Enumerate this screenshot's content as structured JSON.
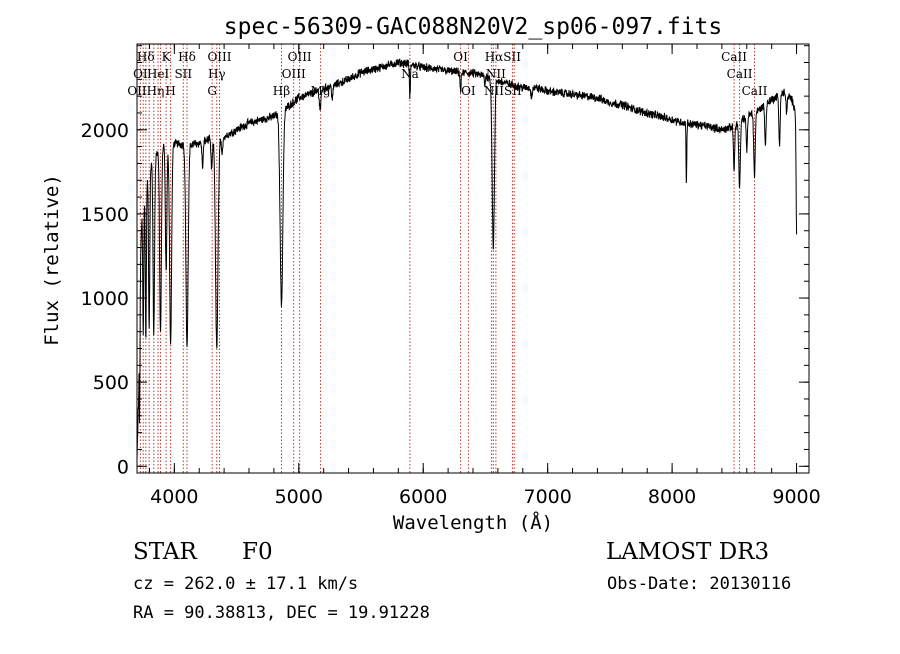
{
  "chart_data": {
    "type": "line",
    "title": "spec-56309-GAC088N20V2_sp06-097.fits",
    "xlabel": "Wavelength (Å)",
    "ylabel": "Flux (relative)",
    "xlim": [
      3700,
      9100
    ],
    "ylim": [
      -40,
      2510
    ],
    "x_ticks": [
      4000,
      5000,
      6000,
      7000,
      8000,
      9000
    ],
    "x_tick_labels": [
      "4000",
      "5000",
      "6000",
      "7000",
      "8000",
      "9000"
    ],
    "y_ticks": [
      0,
      500,
      1000,
      1500,
      2000
    ],
    "y_tick_labels": [
      "0",
      "500",
      "1000",
      "1500",
      "2000"
    ],
    "x_minor_step": 200,
    "y_minor_step": 100,
    "continuum": [
      [
        3700,
        600
      ],
      [
        3740,
        1500
      ],
      [
        3800,
        1780
      ],
      [
        3850,
        1850
      ],
      [
        3900,
        1900
      ],
      [
        4000,
        1920
      ],
      [
        4100,
        1910
      ],
      [
        4200,
        1920
      ],
      [
        4300,
        1950
      ],
      [
        4400,
        1960
      ],
      [
        4500,
        2000
      ],
      [
        4600,
        2040
      ],
      [
        4700,
        2060
      ],
      [
        4800,
        2080
      ],
      [
        4900,
        2130
      ],
      [
        5000,
        2190
      ],
      [
        5100,
        2215
      ],
      [
        5200,
        2245
      ],
      [
        5300,
        2270
      ],
      [
        5400,
        2300
      ],
      [
        5500,
        2340
      ],
      [
        5600,
        2360
      ],
      [
        5700,
        2380
      ],
      [
        5800,
        2400
      ],
      [
        5900,
        2390
      ],
      [
        6000,
        2370
      ],
      [
        6100,
        2360
      ],
      [
        6200,
        2350
      ],
      [
        6300,
        2340
      ],
      [
        6400,
        2335
      ],
      [
        6500,
        2320
      ],
      [
        6600,
        2290
      ],
      [
        6700,
        2270
      ],
      [
        6800,
        2250
      ],
      [
        6900,
        2250
      ],
      [
        7000,
        2230
      ],
      [
        7100,
        2220
      ],
      [
        7200,
        2210
      ],
      [
        7300,
        2200
      ],
      [
        7400,
        2190
      ],
      [
        7500,
        2160
      ],
      [
        7600,
        2150
      ],
      [
        7700,
        2120
      ],
      [
        7800,
        2100
      ],
      [
        7900,
        2080
      ],
      [
        8000,
        2060
      ],
      [
        8100,
        2040
      ],
      [
        8200,
        2030
      ],
      [
        8300,
        2020
      ],
      [
        8400,
        2000
      ],
      [
        8500,
        2020
      ],
      [
        8600,
        2080
      ],
      [
        8700,
        2120
      ],
      [
        8800,
        2180
      ],
      [
        8900,
        2220
      ],
      [
        8960,
        2180
      ],
      [
        9000,
        2100
      ]
    ],
    "absorption": [
      {
        "center": 3720,
        "depth": 800,
        "width": 4
      },
      {
        "center": 3750,
        "depth": 750,
        "width": 4
      },
      {
        "center": 3771,
        "depth": 900,
        "width": 4
      },
      {
        "center": 3798,
        "depth": 950,
        "width": 5
      },
      {
        "center": 3835,
        "depth": 1050,
        "width": 6
      },
      {
        "center": 3889,
        "depth": 1100,
        "width": 7
      },
      {
        "center": 3934,
        "depth": 750,
        "width": 6
      },
      {
        "center": 3970,
        "depth": 1200,
        "width": 8
      },
      {
        "center": 4102,
        "depth": 1200,
        "width": 9
      },
      {
        "center": 4227,
        "depth": 150,
        "width": 5
      },
      {
        "center": 4300,
        "depth": 180,
        "width": 6
      },
      {
        "center": 4341,
        "depth": 1250,
        "width": 10
      },
      {
        "center": 4383,
        "depth": 120,
        "width": 5
      },
      {
        "center": 4861,
        "depth": 1150,
        "width": 11
      },
      {
        "center": 5172,
        "depth": 120,
        "width": 6
      },
      {
        "center": 5270,
        "depth": 80,
        "width": 5
      },
      {
        "center": 5893,
        "depth": 200,
        "width": 4
      },
      {
        "center": 6300,
        "depth": 120,
        "width": 4
      },
      {
        "center": 6495,
        "depth": 60,
        "width": 4
      },
      {
        "center": 6563,
        "depth": 1000,
        "width": 9
      },
      {
        "center": 6870,
        "depth": 50,
        "width": 6
      },
      {
        "center": 8115,
        "depth": 350,
        "width": 3
      },
      {
        "center": 8498,
        "depth": 250,
        "width": 5
      },
      {
        "center": 8542,
        "depth": 400,
        "width": 6
      },
      {
        "center": 8600,
        "depth": 200,
        "width": 5
      },
      {
        "center": 8662,
        "depth": 380,
        "width": 6
      },
      {
        "center": 8750,
        "depth": 250,
        "width": 5
      },
      {
        "center": 8863,
        "depth": 300,
        "width": 5
      },
      {
        "center": 8920,
        "depth": 100,
        "width": 5
      },
      {
        "center": 9000,
        "depth": 700,
        "width": 4
      }
    ],
    "line_markers": [
      3727,
      3750,
      3771,
      3798,
      3835,
      3869,
      3889,
      3934,
      3970,
      4072,
      4102,
      4304,
      4341,
      4363,
      4861,
      4959,
      5007,
      5175,
      5893,
      6300,
      6363,
      6548,
      6563,
      6584,
      6717,
      6731,
      8498,
      8542,
      8662
    ],
    "line_labels": [
      {
        "text": "Hδ",
        "x": 3770,
        "row": 0
      },
      {
        "text": "K",
        "x": 3934,
        "row": 0
      },
      {
        "text": "Hδ",
        "x": 4102,
        "row": 0
      },
      {
        "text": "OIII",
        "x": 4363,
        "row": 0
      },
      {
        "text": "OIII",
        "x": 5007,
        "row": 0
      },
      {
        "text": "OI",
        "x": 6300,
        "row": 0
      },
      {
        "text": "HαSII",
        "x": 6640,
        "row": 0
      },
      {
        "text": "CaII",
        "x": 8498,
        "row": 0
      },
      {
        "text": "OI",
        "x": 3727,
        "row": 1
      },
      {
        "text": "HeI",
        "x": 3870,
        "row": 1
      },
      {
        "text": "SII",
        "x": 4072,
        "row": 1
      },
      {
        "text": "Hγ",
        "x": 4341,
        "row": 1
      },
      {
        "text": "OIII",
        "x": 4959,
        "row": 1
      },
      {
        "text": "Na",
        "x": 5893,
        "row": 1
      },
      {
        "text": "NII",
        "x": 6584,
        "row": 1
      },
      {
        "text": "CaII",
        "x": 8542,
        "row": 1
      },
      {
        "text": "OIIHη",
        "x": 3771,
        "row": 2
      },
      {
        "text": "H",
        "x": 3970,
        "row": 2
      },
      {
        "text": "G",
        "x": 4304,
        "row": 2
      },
      {
        "text": "Hβ",
        "x": 4861,
        "row": 2
      },
      {
        "text": "Mg",
        "x": 5175,
        "row": 2
      },
      {
        "text": "OI",
        "x": 6363,
        "row": 2
      },
      {
        "text": "NIISII",
        "x": 6640,
        "row": 2
      },
      {
        "text": "CaII",
        "x": 8662,
        "row": 2
      }
    ]
  },
  "info": {
    "class_label": "STAR",
    "subclass": "F0",
    "survey": "LAMOST DR3",
    "redshift_text": "cz = 262.0 ± 17.1 km/s",
    "obs_date_text": "Obs-Date: 20130116",
    "coords_text": "RA =  90.38813, DEC =  19.91228"
  }
}
